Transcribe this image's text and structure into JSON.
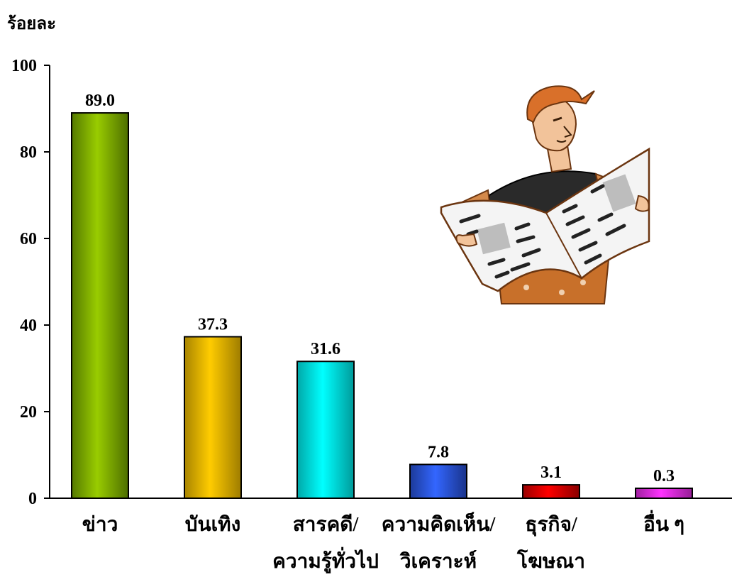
{
  "chart_data": {
    "type": "bar",
    "ylabel": "ร้อยละ",
    "ylim": [
      0,
      100
    ],
    "yticks": [
      0,
      20,
      40,
      60,
      80,
      100
    ],
    "grid": false,
    "legend": "none",
    "categories": [
      [
        "ข่าว"
      ],
      [
        "บันเทิง"
      ],
      [
        "สารคดี/",
        "ความรู้ทั่วไป"
      ],
      [
        "ความคิดเห็น/",
        "วิเคราะห์"
      ],
      [
        "ธุรกิจ/",
        "โฆษณา"
      ],
      [
        "อื่น ๆ"
      ]
    ],
    "values": [
      89.0,
      37.3,
      31.6,
      7.8,
      3.1,
      0.3
    ],
    "value_labels": [
      "89.0",
      "37.3",
      "31.6",
      "7.8",
      "3.1",
      "0.3"
    ],
    "colors": [
      "#99cc00",
      "#ffcc00",
      "#00ffff",
      "#3366ff",
      "#ff0000",
      "#ff33ff"
    ],
    "illustration": "man-reading-newspaper-icon"
  }
}
